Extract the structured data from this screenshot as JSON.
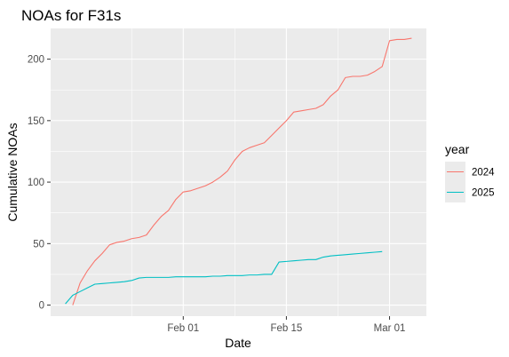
{
  "chart_data": {
    "type": "line",
    "title": "NOAs for F31s",
    "xlabel": "Date",
    "ylabel": "Cumulative NOAs",
    "x_ticks": [
      {
        "date": "2025-02-01",
        "label": "Feb 01"
      },
      {
        "date": "2025-02-15",
        "label": "Feb 15"
      },
      {
        "date": "2025-03-01",
        "label": "Mar 01"
      }
    ],
    "y_ticks": [
      0,
      50,
      100,
      150,
      200
    ],
    "xlim": [
      "2025-01-14",
      "2025-03-06"
    ],
    "ylim": [
      -9,
      225
    ],
    "grid": true,
    "legend": {
      "title": "year",
      "position": "right"
    },
    "series": [
      {
        "name": "2024",
        "color": "#F8766D",
        "points": [
          [
            "2025-01-17",
            0
          ],
          [
            "2025-01-18",
            18
          ],
          [
            "2025-01-19",
            28
          ],
          [
            "2025-01-20",
            36
          ],
          [
            "2025-01-21",
            42
          ],
          [
            "2025-01-22",
            49
          ],
          [
            "2025-01-23",
            51
          ],
          [
            "2025-01-24",
            52
          ],
          [
            "2025-01-25",
            54
          ],
          [
            "2025-01-26",
            55
          ],
          [
            "2025-01-27",
            57
          ],
          [
            "2025-01-28",
            65
          ],
          [
            "2025-01-29",
            72
          ],
          [
            "2025-01-30",
            77
          ],
          [
            "2025-01-31",
            86
          ],
          [
            "2025-02-01",
            92
          ],
          [
            "2025-02-02",
            93
          ],
          [
            "2025-02-03",
            95
          ],
          [
            "2025-02-04",
            97
          ],
          [
            "2025-02-05",
            100
          ],
          [
            "2025-02-06",
            104
          ],
          [
            "2025-02-07",
            109
          ],
          [
            "2025-02-08",
            118
          ],
          [
            "2025-02-09",
            125
          ],
          [
            "2025-02-10",
            128
          ],
          [
            "2025-02-11",
            130
          ],
          [
            "2025-02-12",
            132
          ],
          [
            "2025-02-13",
            138
          ],
          [
            "2025-02-14",
            144
          ],
          [
            "2025-02-15",
            150
          ],
          [
            "2025-02-16",
            157
          ],
          [
            "2025-02-17",
            158
          ],
          [
            "2025-02-18",
            159
          ],
          [
            "2025-02-19",
            160
          ],
          [
            "2025-02-20",
            163
          ],
          [
            "2025-02-21",
            170
          ],
          [
            "2025-02-22",
            175
          ],
          [
            "2025-02-23",
            185
          ],
          [
            "2025-02-24",
            186
          ],
          [
            "2025-02-25",
            186
          ],
          [
            "2025-02-26",
            187
          ],
          [
            "2025-02-27",
            190
          ],
          [
            "2025-02-28",
            194
          ],
          [
            "2025-03-01",
            215
          ],
          [
            "2025-03-02",
            216
          ],
          [
            "2025-03-03",
            216
          ],
          [
            "2025-03-04",
            217
          ]
        ]
      },
      {
        "name": "2025",
        "color": "#00BFC4",
        "points": [
          [
            "2025-01-16",
            1
          ],
          [
            "2025-01-17",
            8
          ],
          [
            "2025-01-18",
            11
          ],
          [
            "2025-01-19",
            14
          ],
          [
            "2025-01-20",
            17
          ],
          [
            "2025-01-21",
            17.5
          ],
          [
            "2025-01-22",
            18
          ],
          [
            "2025-01-23",
            18.5
          ],
          [
            "2025-01-24",
            19
          ],
          [
            "2025-01-25",
            20
          ],
          [
            "2025-01-26",
            22
          ],
          [
            "2025-01-27",
            22.5
          ],
          [
            "2025-01-28",
            22.5
          ],
          [
            "2025-01-29",
            22.5
          ],
          [
            "2025-01-30",
            22.5
          ],
          [
            "2025-01-31",
            23
          ],
          [
            "2025-02-01",
            23
          ],
          [
            "2025-02-02",
            23
          ],
          [
            "2025-02-03",
            23
          ],
          [
            "2025-02-04",
            23
          ],
          [
            "2025-02-05",
            23.5
          ],
          [
            "2025-02-06",
            23.5
          ],
          [
            "2025-02-07",
            24
          ],
          [
            "2025-02-08",
            24
          ],
          [
            "2025-02-09",
            24
          ],
          [
            "2025-02-10",
            24.5
          ],
          [
            "2025-02-11",
            24.5
          ],
          [
            "2025-02-12",
            25
          ],
          [
            "2025-02-13",
            25
          ],
          [
            "2025-02-14",
            35
          ],
          [
            "2025-02-15",
            35.5
          ],
          [
            "2025-02-16",
            36
          ],
          [
            "2025-02-17",
            36.5
          ],
          [
            "2025-02-18",
            37
          ],
          [
            "2025-02-19",
            37
          ],
          [
            "2025-02-20",
            39
          ],
          [
            "2025-02-21",
            40
          ],
          [
            "2025-02-22",
            40.5
          ],
          [
            "2025-02-23",
            41
          ],
          [
            "2025-02-24",
            41.5
          ],
          [
            "2025-02-25",
            42
          ],
          [
            "2025-02-26",
            42.5
          ],
          [
            "2025-02-27",
            43
          ],
          [
            "2025-02-28",
            43.5
          ]
        ]
      }
    ],
    "colors": {
      "panel_background": "#EBEBEB",
      "grid_major": "#FFFFFF",
      "tick_text": "#4D4D4D"
    }
  }
}
